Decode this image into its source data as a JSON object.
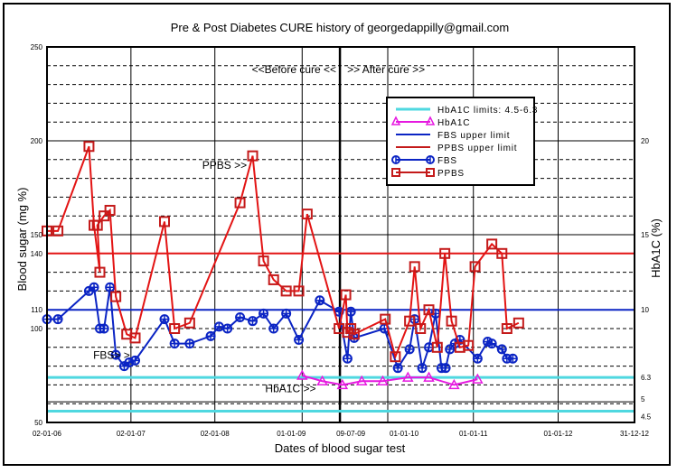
{
  "chart_data": {
    "type": "line",
    "title": "Pre & Post Diabetes CURE history of georgedappilly@gmail.com",
    "xlabel": "Dates of blood sugar test",
    "ylabel": "Blood sugar (mg %)",
    "y2label": "HbA1C (%)",
    "xlim": [
      2006.0,
      2013.0
    ],
    "ylim": [
      50,
      250
    ],
    "y2lim": [
      0.5,
      23.0
    ],
    "grid": true,
    "legend_position": "top-right",
    "x_ticks": [
      {
        "x": 2006.0,
        "label": "02-01-06"
      },
      {
        "x": 2007.0,
        "label": "02-01-07"
      },
      {
        "x": 2008.0,
        "label": "02-01-08"
      },
      {
        "x": 2009.04,
        "label": "01-01-09"
      },
      {
        "x": 2009.49,
        "label": "09-07-09"
      },
      {
        "x": 2010.06,
        "label": "01-01-10"
      },
      {
        "x": 2011.08,
        "label": "01-01-11"
      },
      {
        "x": 2012.09,
        "label": "01-01-12"
      },
      {
        "x": 2013.0,
        "label": "31-12-12"
      }
    ],
    "y_ticks": [
      250,
      200,
      150,
      140,
      110,
      100,
      50
    ],
    "y2_ticks": [
      20,
      15,
      10,
      6.3,
      5,
      4.5
    ],
    "cure_date_x": 2009.49,
    "annotations": [
      {
        "text": "<<Before cure <<",
        "x": 2008.35,
        "y": 236
      },
      {
        "text": ">> After cure >>",
        "x": 2010.1,
        "y": 236
      },
      {
        "text": "PPBS >>",
        "x": 2007.85,
        "y": 185
      },
      {
        "text": "FBS> >",
        "x": 2006.55,
        "y": 84
      },
      {
        "text": "HbA1C >>",
        "x": 2008.6,
        "y": 66
      }
    ],
    "reference_lines": [
      {
        "name": "HbA1C limits: 4.5-6.3",
        "axis": "y2",
        "values": [
          4.5,
          6.3
        ],
        "color": "#4fd8e0"
      },
      {
        "name": "FBS upper limit",
        "axis": "y",
        "values": [
          110
        ],
        "color": "#0b24c4"
      },
      {
        "name": "PPBS upper limit",
        "axis": "y",
        "values": [
          140
        ],
        "color": "#e31414"
      }
    ],
    "legend": [
      {
        "label": "HbA1C  limits: 4.5-6.3",
        "color": "#4fd8e0",
        "marker": "none"
      },
      {
        "label": "HbA1C",
        "color": "#e619e0",
        "marker": "triangle"
      },
      {
        "label": "FBS upper limit",
        "color": "#0b24c4",
        "marker": "none"
      },
      {
        "label": "PPBS upper limit",
        "color": "#c41a1a",
        "marker": "none"
      },
      {
        "label": "FBS",
        "color": "#0b24c4",
        "marker": "circle-plus"
      },
      {
        "label": "PPBS",
        "color": "#c41a1a",
        "marker": "square"
      }
    ],
    "series": [
      {
        "name": "PPBS",
        "axis": "y",
        "color": "#e31414",
        "marker": "square",
        "x": [
          2006.0,
          2006.13,
          2006.5,
          2006.56,
          2006.63,
          2006.6,
          2006.68,
          2006.75,
          2006.82,
          2006.95,
          2007.05,
          2007.4,
          2007.52,
          2007.7,
          2008.3,
          2008.45,
          2008.58,
          2008.7,
          2008.85,
          2009.0,
          2009.1,
          2009.48,
          2009.56,
          2009.58,
          2009.62,
          2009.66,
          2010.03,
          2010.15,
          2010.32,
          2010.38,
          2010.45,
          2010.55,
          2010.65,
          2010.74,
          2010.82,
          2010.92,
          2011.02,
          2011.1,
          2011.3,
          2011.42,
          2011.48,
          2011.62
        ],
        "y": [
          152,
          152,
          197,
          155,
          130,
          155,
          160,
          163,
          117,
          97,
          95,
          157,
          100,
          103,
          167,
          192,
          136,
          126,
          120,
          120,
          161,
          100,
          118,
          98,
          100,
          97,
          105,
          85,
          104,
          133,
          100,
          110,
          90,
          140,
          104,
          90,
          91,
          133,
          145,
          140,
          100,
          103
        ],
        "note": "approximate values read from chart"
      },
      {
        "name": "FBS",
        "axis": "y",
        "color": "#0b24c4",
        "marker": "circle-plus",
        "x": [
          2006.0,
          2006.13,
          2006.5,
          2006.56,
          2006.63,
          2006.68,
          2006.75,
          2006.82,
          2006.92,
          2006.98,
          2007.05,
          2007.4,
          2007.52,
          2007.7,
          2007.95,
          2008.05,
          2008.15,
          2008.3,
          2008.45,
          2008.58,
          2008.7,
          2008.85,
          2009.0,
          2009.25,
          2009.48,
          2009.58,
          2009.62,
          2009.66,
          2010.02,
          2010.18,
          2010.32,
          2010.38,
          2010.47,
          2010.55,
          2010.63,
          2010.7,
          2010.75,
          2010.8,
          2010.86,
          2010.92,
          2011.13,
          2011.25,
          2011.3,
          2011.42,
          2011.48,
          2011.55
        ],
        "y": [
          105,
          105,
          120,
          122,
          100,
          100,
          122,
          86,
          80,
          82,
          83,
          105,
          92,
          92,
          96,
          101,
          100,
          106,
          104,
          108,
          100,
          108,
          94,
          115,
          109,
          84,
          109,
          95,
          100,
          79,
          89,
          105,
          79,
          90,
          108,
          79,
          79,
          89,
          92,
          94,
          84,
          93,
          92,
          89,
          84,
          84
        ],
        "note": "approximate values read from chart"
      },
      {
        "name": "HbA1C",
        "axis": "y2",
        "color": "#e619e0",
        "marker": "triangle",
        "x": [
          2009.04,
          2009.28,
          2009.52,
          2009.75,
          2010.0,
          2010.3,
          2010.55,
          2010.85,
          2011.13
        ],
        "y": [
          6.4,
          6.1,
          5.9,
          6.1,
          6.1,
          6.3,
          6.3,
          5.9,
          6.2
        ]
      }
    ]
  }
}
